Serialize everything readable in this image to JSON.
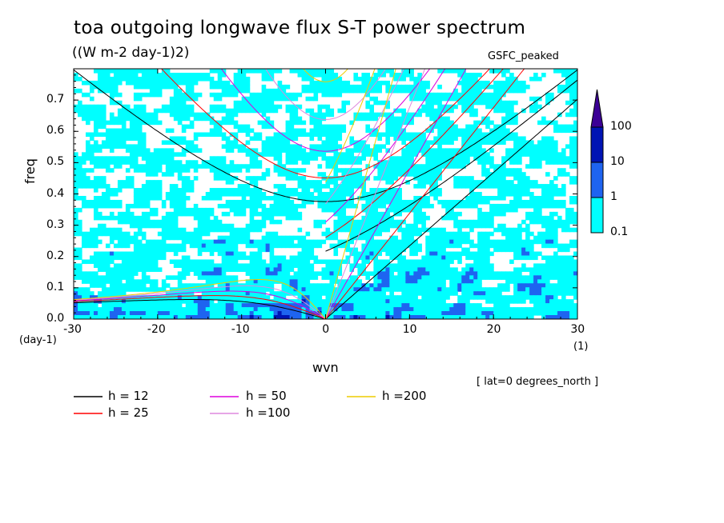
{
  "title": "toa outgoing longwave flux S-T power spectrum",
  "units": "((W m-2 day-1)2)",
  "dataset": "GSFC_peaked",
  "note": "[ lat=0 degrees_north ]",
  "x_unit": "(1)",
  "y_unit": "(day-1)",
  "chart_data": {
    "type": "heatmap",
    "title": "toa outgoing longwave flux S-T power spectrum",
    "xlabel": "wvn",
    "ylabel": "freq",
    "xlim": [
      -30,
      30
    ],
    "ylim": [
      0.0,
      0.8
    ],
    "x_ticks": [
      "-30",
      "-20",
      "-10",
      "0",
      "10",
      "20",
      "30"
    ],
    "y_ticks": [
      "0.0",
      "0.1",
      "0.2",
      "0.3",
      "0.4",
      "0.5",
      "0.6",
      "0.7"
    ],
    "colorbar": {
      "levels": [
        "0.1",
        "1",
        "10",
        "100"
      ],
      "colors": [
        "#00ffff",
        "#1e64f0",
        "#0014b4",
        "#3c0096"
      ]
    },
    "dispersion_curves": [
      {
        "label": "h = 12",
        "h": 12,
        "color": "#000000"
      },
      {
        "label": "h = 25",
        "h": 25,
        "color": "#ff0000"
      },
      {
        "label": "h = 50",
        "h": 50,
        "color": "#dd00dd"
      },
      {
        "label": "h =100",
        "h": 100,
        "color": "#dd88dd"
      },
      {
        "label": "h =200",
        "h": 200,
        "color": "#eecc00"
      }
    ]
  }
}
